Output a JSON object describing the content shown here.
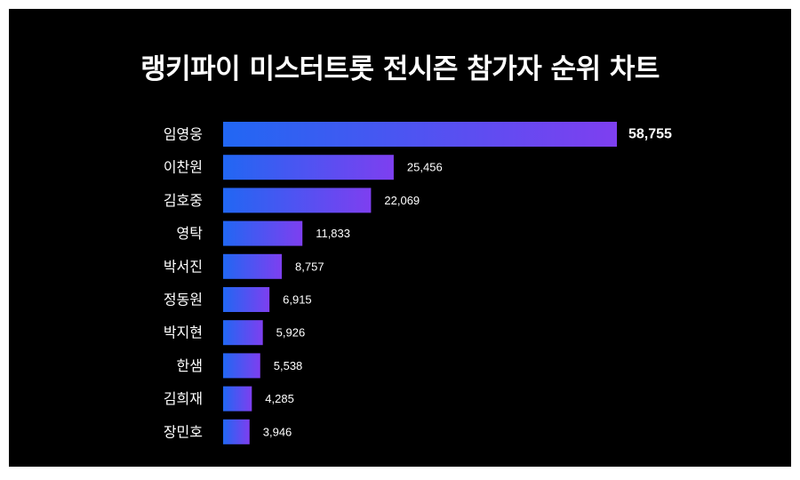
{
  "chart_data": {
    "type": "bar",
    "orientation": "horizontal",
    "title": "랭키파이 미스터트롯 전시즌 참가자 순위 차트",
    "categories": [
      "임영웅",
      "이찬원",
      "김호중",
      "영탁",
      "박서진",
      "정동원",
      "박지현",
      "한샘",
      "김희재",
      "장민호"
    ],
    "values": [
      58755,
      25456,
      22069,
      11833,
      8757,
      6915,
      5926,
      5538,
      4285,
      3946
    ],
    "value_labels": [
      "58,755",
      "25,456",
      "22,069",
      "11,833",
      "8,757",
      "6,915",
      "5,926",
      "5,538",
      "4,285",
      "3,946"
    ],
    "xlim": [
      0,
      58755
    ],
    "grid": false,
    "legend": "none",
    "colors": {
      "background": "#000000",
      "bar_start": "#2167f3",
      "bar_end": "#7e3ff0",
      "text": "#ffffff"
    }
  }
}
